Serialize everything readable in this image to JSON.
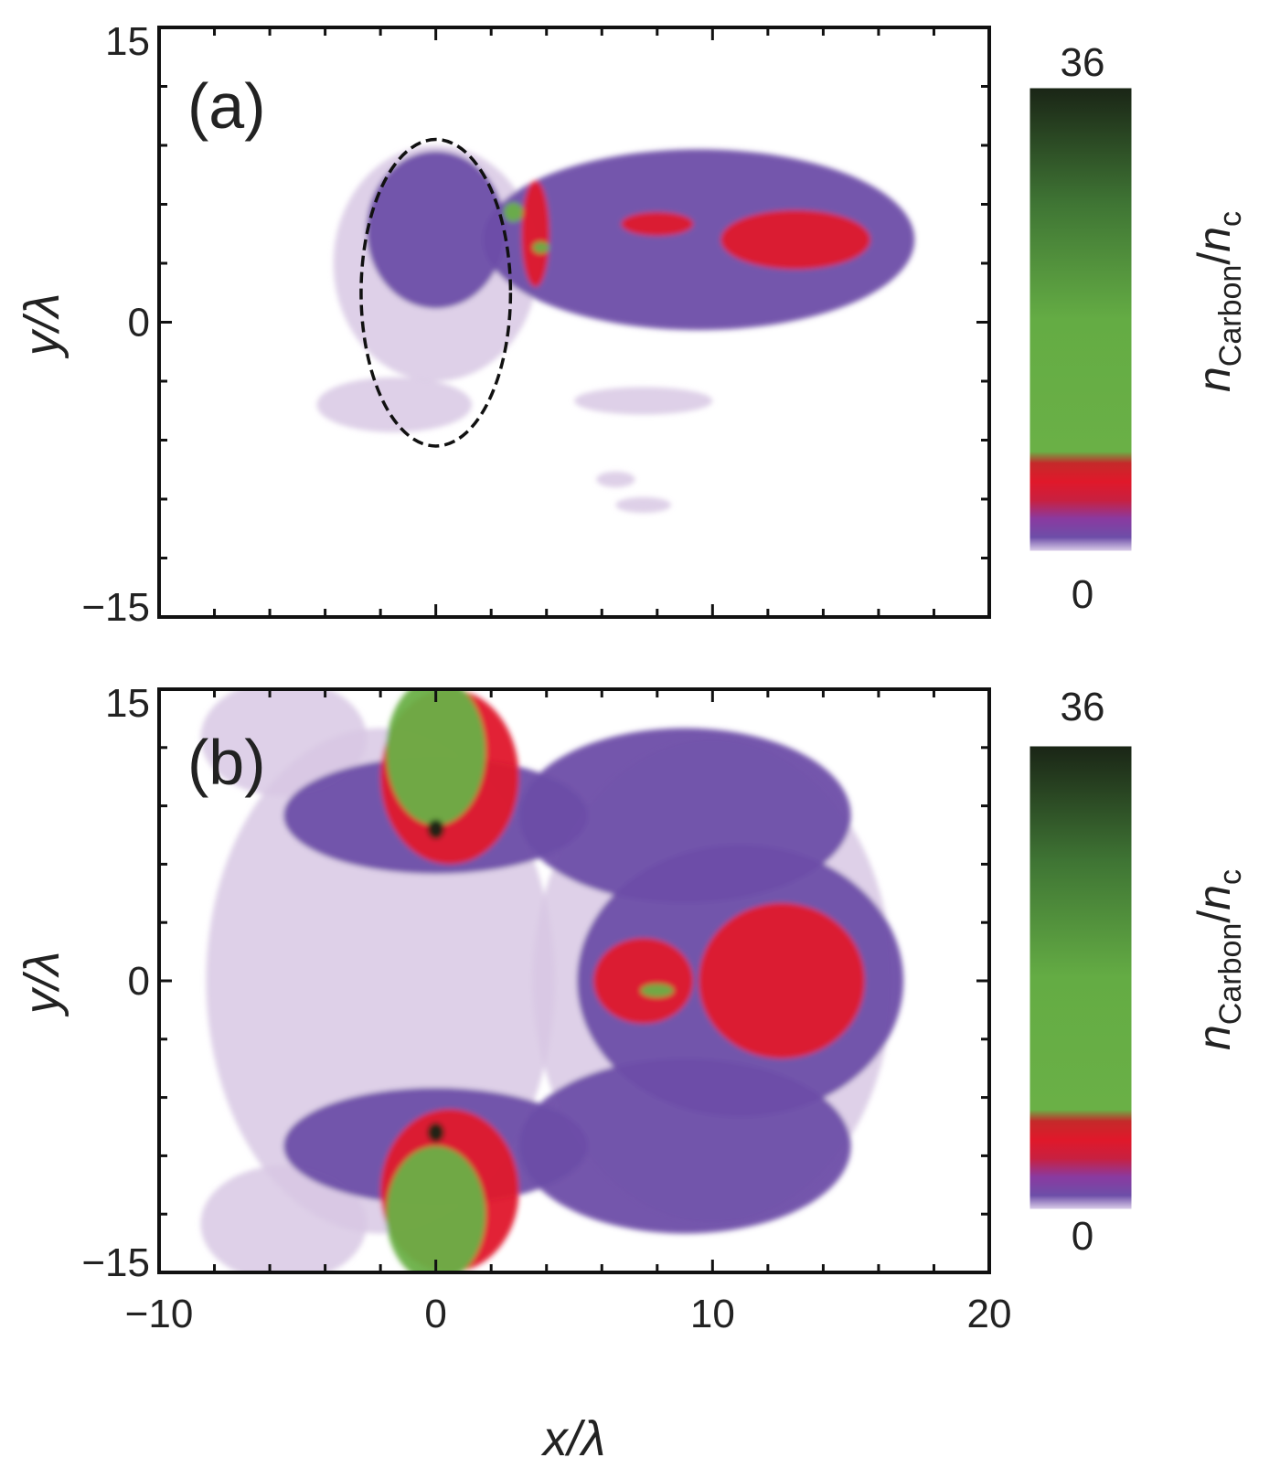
{
  "chart_data": [
    {
      "type": "heatmap",
      "panel_label": "(a)",
      "xlim": [
        -10,
        20
      ],
      "ylim": [
        -15,
        15
      ],
      "x_ticks": [
        -10,
        0,
        10,
        20
      ],
      "y_ticks": [
        -15,
        0,
        15
      ],
      "ylabel": "y/λ",
      "xlabel": "x/λ",
      "colorbar": {
        "min": 0,
        "max": 36,
        "label": "n",
        "label_sub": "Carbon",
        "label_sep": "/",
        "label2": "n",
        "label2_sub": "c"
      },
      "colors": {
        "faint": "#d8c8e4",
        "low": "#6d4ea8",
        "mid": "#e0182a",
        "high": "#6ab046",
        "max": "#1a2516"
      },
      "annotation": {
        "type": "dashed-ellipse",
        "cx": 0,
        "cy": 1.5,
        "rx": 2.7,
        "ry": 7.8
      },
      "blobs": [
        {
          "level": "faint",
          "cx": 0,
          "cy": 3,
          "rx": 3.7,
          "ry": 6
        },
        {
          "level": "faint",
          "cx": -1.5,
          "cy": -4.2,
          "rx": 2.8,
          "ry": 1.4
        },
        {
          "level": "faint",
          "cx": 7.5,
          "cy": -4,
          "rx": 2.5,
          "ry": 0.7
        },
        {
          "level": "faint",
          "cx": 6.5,
          "cy": -8,
          "rx": 0.7,
          "ry": 0.4
        },
        {
          "level": "faint",
          "cx": 7.5,
          "cy": -9.3,
          "rx": 1,
          "ry": 0.4
        },
        {
          "level": "low",
          "cx": 9.5,
          "cy": 4.2,
          "rx": 7.8,
          "ry": 4.6
        },
        {
          "level": "low",
          "cx": 0,
          "cy": 4.7,
          "rx": 2.5,
          "ry": 4
        },
        {
          "level": "mid",
          "cx": 13,
          "cy": 4.2,
          "rx": 2.7,
          "ry": 1.5
        },
        {
          "level": "mid",
          "cx": 3.6,
          "cy": 4.5,
          "rx": 0.5,
          "ry": 2.7
        },
        {
          "level": "mid",
          "cx": 8,
          "cy": 5,
          "rx": 1.3,
          "ry": 0.6
        },
        {
          "level": "high",
          "cx": 2.8,
          "cy": 5.6,
          "rx": 0.35,
          "ry": 0.5
        },
        {
          "level": "high",
          "cx": 3.8,
          "cy": 3.8,
          "rx": 0.3,
          "ry": 0.3
        }
      ]
    },
    {
      "type": "heatmap",
      "panel_label": "(b)",
      "xlim": [
        -10,
        20
      ],
      "ylim": [
        -15,
        15
      ],
      "x_ticks": [
        -10,
        0,
        10,
        20
      ],
      "y_ticks": [
        -15,
        0,
        15
      ],
      "ylabel": "y/λ",
      "xlabel": "x/λ",
      "colorbar": {
        "min": 0,
        "max": 36,
        "label": "n",
        "label_sub": "Carbon",
        "label_sep": "/",
        "label2": "n",
        "label2_sub": "c"
      },
      "colors": {
        "faint": "#d8c8e4",
        "low": "#6d4ea8",
        "mid": "#e0182a",
        "high": "#6ab046",
        "max": "#1a2516"
      },
      "blobs": [
        {
          "level": "faint",
          "cx": -2,
          "cy": 0,
          "rx": 6.3,
          "ry": 13
        },
        {
          "level": "faint",
          "cx": -5.5,
          "cy": 12.5,
          "rx": 3,
          "ry": 3
        },
        {
          "level": "faint",
          "cx": -5.5,
          "cy": -12.5,
          "rx": 3,
          "ry": 3
        },
        {
          "level": "faint",
          "cx": 10,
          "cy": 0,
          "rx": 6.5,
          "ry": 12.5
        },
        {
          "level": "low",
          "cx": 11,
          "cy": 0,
          "rx": 5.9,
          "ry": 7
        },
        {
          "level": "low",
          "cx": 9,
          "cy": 8.5,
          "rx": 6,
          "ry": 4.5
        },
        {
          "level": "low",
          "cx": 9,
          "cy": -8.5,
          "rx": 6,
          "ry": 4.5
        },
        {
          "level": "low",
          "cx": 0,
          "cy": 8.5,
          "rx": 5.5,
          "ry": 3
        },
        {
          "level": "low",
          "cx": 0,
          "cy": -8.5,
          "rx": 5.5,
          "ry": 3
        },
        {
          "level": "mid",
          "cx": 12.5,
          "cy": 0,
          "rx": 3,
          "ry": 4
        },
        {
          "level": "mid",
          "cx": 7.5,
          "cy": 0,
          "rx": 1.8,
          "ry": 2.2
        },
        {
          "level": "mid",
          "cx": 0.5,
          "cy": 10.5,
          "rx": 2.5,
          "ry": 4.5
        },
        {
          "level": "mid",
          "cx": 0.5,
          "cy": -10.8,
          "rx": 2.5,
          "ry": 4.2
        },
        {
          "level": "high",
          "cx": 0,
          "cy": 11.8,
          "rx": 1.8,
          "ry": 3.8
        },
        {
          "level": "high",
          "cx": 0,
          "cy": -12,
          "rx": 1.8,
          "ry": 3.5
        },
        {
          "level": "high",
          "cx": 8,
          "cy": -0.5,
          "rx": 0.6,
          "ry": 0.35
        },
        {
          "level": "max",
          "cx": 0,
          "cy": 7.8,
          "rx": 0.3,
          "ry": 0.5
        },
        {
          "level": "max",
          "cx": 0,
          "cy": -7.8,
          "rx": 0.3,
          "ry": 0.5
        }
      ]
    }
  ]
}
